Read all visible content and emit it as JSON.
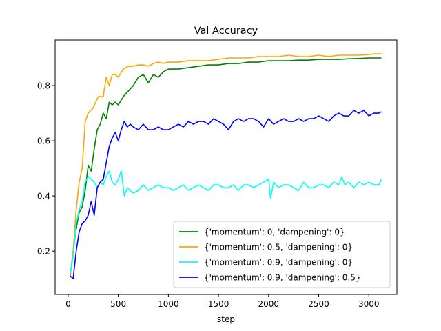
{
  "chart_data": {
    "type": "line",
    "title": "Val Accuracy",
    "xlabel": "step",
    "ylabel": "",
    "xlim": [
      -130,
      3280
    ],
    "ylim": [
      0.043,
      0.965
    ],
    "xticks": [
      0,
      500,
      1000,
      1500,
      2000,
      2500,
      3000
    ],
    "yticks": [
      0.2,
      0.4,
      0.6,
      0.8
    ],
    "grid": false,
    "legend_position": "lower right",
    "series": [
      {
        "name": "{'momentum': 0, 'dampening': 0}",
        "color": "#008000",
        "x": [
          20,
          50,
          80,
          110,
          140,
          170,
          200,
          230,
          260,
          290,
          320,
          350,
          380,
          410,
          440,
          470,
          500,
          550,
          600,
          650,
          700,
          750,
          800,
          850,
          900,
          950,
          1000,
          1100,
          1200,
          1300,
          1400,
          1500,
          1600,
          1700,
          1800,
          1900,
          2000,
          2100,
          2200,
          2300,
          2400,
          2500,
          2600,
          2700,
          2800,
          2900,
          3000,
          3050,
          3125
        ],
        "values": [
          0.11,
          0.2,
          0.28,
          0.34,
          0.36,
          0.42,
          0.51,
          0.49,
          0.57,
          0.64,
          0.66,
          0.7,
          0.68,
          0.74,
          0.73,
          0.74,
          0.73,
          0.76,
          0.78,
          0.8,
          0.83,
          0.84,
          0.81,
          0.84,
          0.83,
          0.85,
          0.86,
          0.86,
          0.865,
          0.87,
          0.875,
          0.875,
          0.88,
          0.88,
          0.885,
          0.885,
          0.89,
          0.89,
          0.89,
          0.892,
          0.892,
          0.895,
          0.895,
          0.895,
          0.897,
          0.898,
          0.9,
          0.9,
          0.9
        ]
      },
      {
        "name": "{'momentum': 0.5, 'dampening': 0}",
        "color": "#ffa500",
        "x": [
          20,
          50,
          80,
          110,
          140,
          170,
          200,
          250,
          300,
          350,
          380,
          410,
          440,
          470,
          500,
          550,
          600,
          650,
          700,
          750,
          800,
          850,
          900,
          950,
          1000,
          1100,
          1200,
          1300,
          1400,
          1500,
          1600,
          1700,
          1800,
          1900,
          2000,
          2100,
          2200,
          2300,
          2400,
          2500,
          2600,
          2700,
          2800,
          2900,
          3000,
          3050,
          3125
        ],
        "values": [
          0.11,
          0.2,
          0.35,
          0.45,
          0.5,
          0.67,
          0.7,
          0.72,
          0.76,
          0.76,
          0.83,
          0.8,
          0.84,
          0.84,
          0.83,
          0.86,
          0.87,
          0.87,
          0.875,
          0.875,
          0.87,
          0.88,
          0.885,
          0.88,
          0.885,
          0.885,
          0.89,
          0.89,
          0.89,
          0.895,
          0.9,
          0.9,
          0.9,
          0.905,
          0.905,
          0.905,
          0.91,
          0.905,
          0.905,
          0.91,
          0.905,
          0.91,
          0.91,
          0.91,
          0.912,
          0.915,
          0.915
        ]
      },
      {
        "name": "{'momentum': 0.9, 'dampening': 0}",
        "color": "#00ffff",
        "x": [
          20,
          50,
          80,
          110,
          140,
          170,
          200,
          230,
          260,
          290,
          320,
          350,
          380,
          410,
          440,
          470,
          500,
          530,
          560,
          590,
          620,
          650,
          700,
          750,
          800,
          850,
          900,
          950,
          1000,
          1050,
          1100,
          1150,
          1200,
          1250,
          1300,
          1350,
          1400,
          1450,
          1500,
          1550,
          1600,
          1650,
          1700,
          1750,
          1800,
          1850,
          1900,
          1950,
          2000,
          2020,
          2050,
          2100,
          2150,
          2200,
          2250,
          2300,
          2350,
          2400,
          2450,
          2500,
          2550,
          2600,
          2650,
          2700,
          2730,
          2760,
          2800,
          2850,
          2900,
          2950,
          3000,
          3050,
          3100,
          3125
        ],
        "values": [
          0.12,
          0.18,
          0.3,
          0.35,
          0.38,
          0.45,
          0.47,
          0.46,
          0.45,
          0.43,
          0.45,
          0.44,
          0.47,
          0.49,
          0.45,
          0.44,
          0.46,
          0.49,
          0.4,
          0.43,
          0.42,
          0.41,
          0.42,
          0.44,
          0.42,
          0.43,
          0.44,
          0.43,
          0.43,
          0.42,
          0.43,
          0.44,
          0.42,
          0.43,
          0.44,
          0.43,
          0.42,
          0.44,
          0.44,
          0.43,
          0.43,
          0.44,
          0.42,
          0.44,
          0.44,
          0.43,
          0.44,
          0.45,
          0.46,
          0.39,
          0.45,
          0.43,
          0.44,
          0.44,
          0.43,
          0.42,
          0.45,
          0.43,
          0.43,
          0.44,
          0.44,
          0.43,
          0.45,
          0.44,
          0.47,
          0.44,
          0.45,
          0.43,
          0.45,
          0.44,
          0.45,
          0.44,
          0.44,
          0.46
        ]
      },
      {
        "name": "{'momentum': 0.9, 'dampening': 0.5}",
        "color": "#0000ff",
        "x": [
          20,
          50,
          80,
          110,
          140,
          170,
          200,
          230,
          260,
          290,
          320,
          350,
          380,
          410,
          440,
          470,
          500,
          530,
          560,
          590,
          620,
          650,
          700,
          750,
          800,
          850,
          900,
          950,
          1000,
          1050,
          1100,
          1150,
          1200,
          1250,
          1300,
          1350,
          1400,
          1450,
          1500,
          1550,
          1600,
          1650,
          1700,
          1750,
          1800,
          1850,
          1900,
          1950,
          2000,
          2050,
          2100,
          2150,
          2200,
          2250,
          2300,
          2350,
          2400,
          2450,
          2500,
          2550,
          2600,
          2650,
          2700,
          2750,
          2800,
          2850,
          2900,
          2950,
          3000,
          3050,
          3100,
          3125
        ],
        "values": [
          0.11,
          0.1,
          0.2,
          0.27,
          0.3,
          0.31,
          0.33,
          0.38,
          0.33,
          0.43,
          0.45,
          0.46,
          0.52,
          0.58,
          0.61,
          0.63,
          0.6,
          0.64,
          0.67,
          0.65,
          0.66,
          0.65,
          0.64,
          0.66,
          0.64,
          0.64,
          0.65,
          0.64,
          0.64,
          0.65,
          0.66,
          0.65,
          0.67,
          0.66,
          0.67,
          0.67,
          0.66,
          0.68,
          0.67,
          0.66,
          0.64,
          0.67,
          0.68,
          0.67,
          0.68,
          0.68,
          0.67,
          0.65,
          0.68,
          0.66,
          0.67,
          0.68,
          0.67,
          0.67,
          0.68,
          0.67,
          0.68,
          0.68,
          0.69,
          0.68,
          0.67,
          0.69,
          0.7,
          0.69,
          0.69,
          0.71,
          0.7,
          0.71,
          0.69,
          0.7,
          0.7,
          0.705
        ]
      }
    ]
  }
}
